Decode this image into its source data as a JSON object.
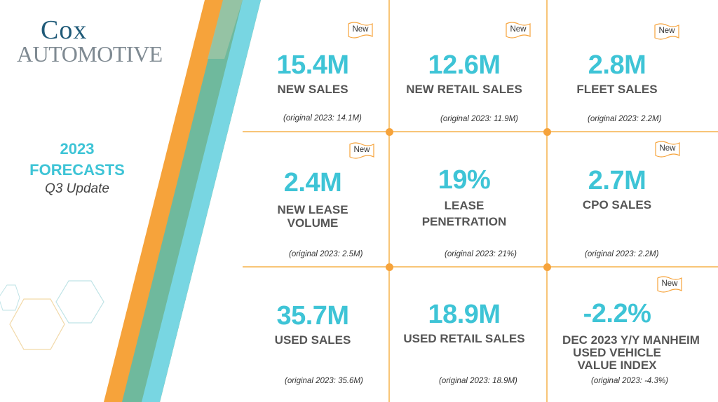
{
  "brand": {
    "line1": "Cox",
    "line2": "Automotive"
  },
  "headline": {
    "line1": "2023",
    "line2": "FORECASTS",
    "line3": "Q3 Update"
  },
  "colors": {
    "accent": "#3ec4d6",
    "orange": "#f6a33b",
    "green": "#6fb99d",
    "grid": "#f6b24a"
  },
  "cards": [
    {
      "value": "15.4M",
      "label1": "NEW SALES",
      "label2": "",
      "original": "(original 2023: 14.1M)",
      "badge": "New"
    },
    {
      "value": "12.6M",
      "label1": "NEW RETAIL SALES",
      "label2": "",
      "original": "(original 2023: 11.9M)",
      "badge": "New"
    },
    {
      "value": "2.8M",
      "label1": "FLEET SALES",
      "label2": "",
      "original": "(original 2023: 2.2M)",
      "badge": "New"
    },
    {
      "value": "2.4M",
      "label1": "NEW LEASE",
      "label2": "VOLUME",
      "original": "(original 2023: 2.5M)",
      "badge": "New"
    },
    {
      "value": "19%",
      "label1": "LEASE",
      "label2": "PENETRATION",
      "original": "(original 2023: 21%)",
      "badge": ""
    },
    {
      "value": "2.7M",
      "label1": "CPO SALES",
      "label2": "",
      "original": "(original 2023:  2.2M)",
      "badge": "New"
    },
    {
      "value": "35.7M",
      "label1": "USED SALES",
      "label2": "",
      "original": "(original 2023: 35.6M)",
      "badge": ""
    },
    {
      "value": "18.9M",
      "label1": "USED RETAIL SALES",
      "label2": "",
      "original": "(original 2023: 18.9M)",
      "badge": ""
    },
    {
      "value": "-2.2%",
      "label1": "DEC 2023 Y/Y MANHEIM",
      "label2": "USED VEHICLE",
      "label3": "VALUE INDEX",
      "original": "(original 2023: -4.3%)",
      "badge": "New"
    }
  ]
}
